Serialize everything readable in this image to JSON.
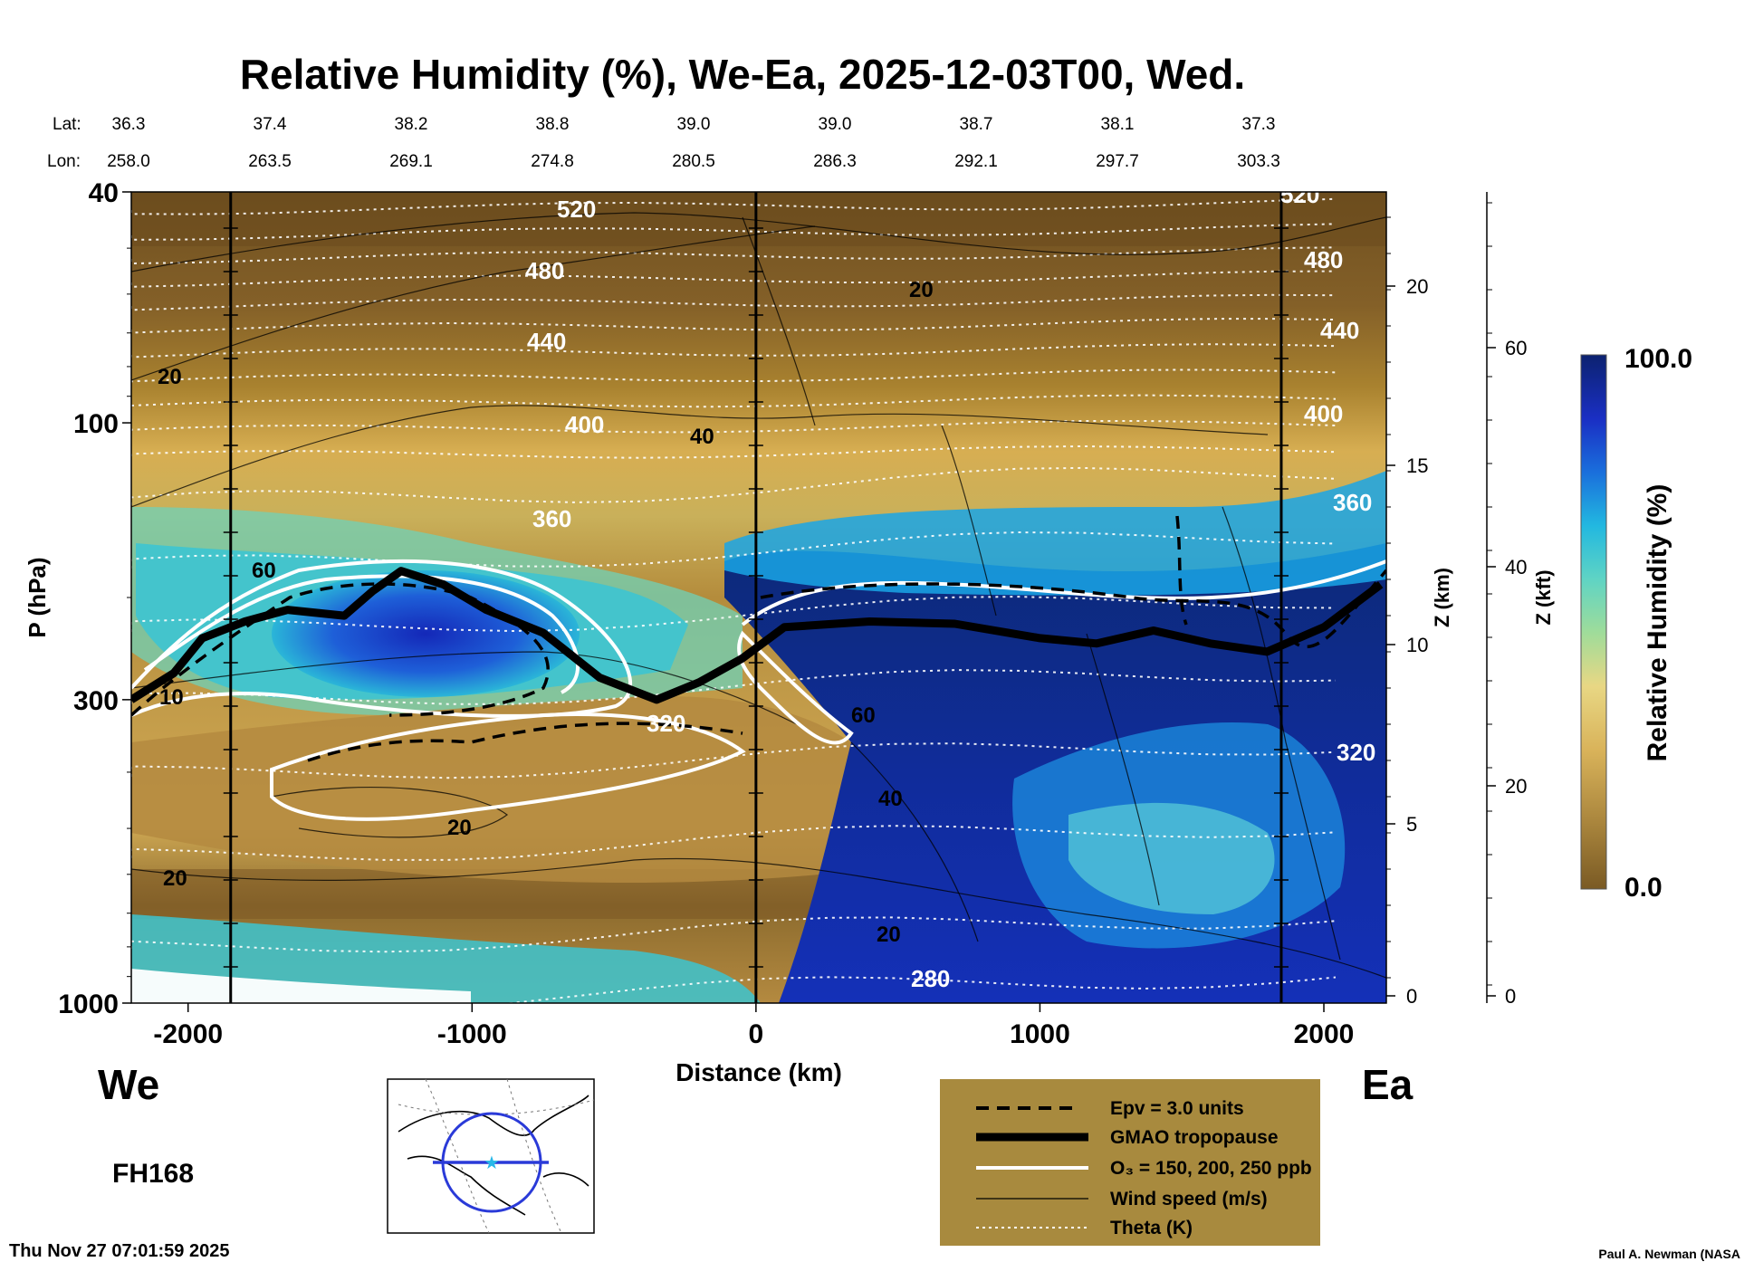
{
  "chart_data": {
    "type": "heatmap",
    "title": "Relative Humidity (%), We-Ea, 2025-12-03T00, Wed.",
    "xlabel": "Distance (km)",
    "ylabel": "P (hPa)",
    "xlim": [
      -2200,
      2220
    ],
    "ylim": [
      1000,
      40
    ],
    "x_ticks": [
      "-2000",
      "-1000",
      "0",
      "1000",
      "2000"
    ],
    "x_tick_values": [
      -2000,
      -1000,
      0,
      1000,
      2000
    ],
    "y_ticks": [
      "40",
      "100",
      "300",
      "1000"
    ],
    "y_tick_values": [
      40,
      100,
      300,
      1000
    ],
    "z_km_label": "Z (km)",
    "z_km_ticks": [
      "0",
      "5",
      "10",
      "15",
      "20"
    ],
    "z_kft_label": "Z (kft)",
    "z_kft_ticks": [
      "0",
      "20",
      "40",
      "60"
    ],
    "lat_label": "Lat:",
    "lon_label": "Lon:",
    "lat_values": [
      "36.3",
      "37.4",
      "38.2",
      "38.8",
      "39.0",
      "39.0",
      "38.7",
      "38.1",
      "37.3"
    ],
    "lon_values": [
      "258.0",
      "263.5",
      "269.1",
      "274.8",
      "280.5",
      "286.3",
      "292.1",
      "297.7",
      "303.3"
    ],
    "west_label": "We",
    "east_label": "Ea",
    "vertical_marker_distances": [
      -1850,
      0,
      1850
    ],
    "theta_labels": [
      "520",
      "480",
      "440",
      "400",
      "360",
      "320",
      "280",
      "520",
      "480",
      "440",
      "400",
      "360",
      "320"
    ],
    "wind_labels": [
      "20",
      "20",
      "40",
      "60",
      "20",
      "60",
      "40",
      "20",
      "20",
      "10"
    ],
    "colorbar": {
      "label": "Relative Humidity (%)",
      "max_label": "100.0",
      "min_label": "0.0",
      "max": 100,
      "min": 0
    },
    "tropopause_pressure_hpa": [
      [
        -2200,
        300
      ],
      [
        -2050,
        270
      ],
      [
        -1950,
        235
      ],
      [
        -1800,
        220
      ],
      [
        -1650,
        210
      ],
      [
        -1450,
        215
      ],
      [
        -1350,
        195
      ],
      [
        -1250,
        180
      ],
      [
        -1100,
        190
      ],
      [
        -950,
        210
      ],
      [
        -750,
        230
      ],
      [
        -550,
        275
      ],
      [
        -350,
        300
      ],
      [
        -200,
        280
      ],
      [
        -50,
        255
      ],
      [
        100,
        225
      ],
      [
        400,
        220
      ],
      [
        700,
        222
      ],
      [
        1000,
        235
      ],
      [
        1200,
        240
      ],
      [
        1400,
        228
      ],
      [
        1600,
        240
      ],
      [
        1800,
        248
      ],
      [
        2000,
        225
      ],
      [
        2200,
        190
      ]
    ],
    "legend": [
      {
        "style": "dashed",
        "label": "Epv = 3.0 units"
      },
      {
        "style": "thick-black",
        "label": "GMAO tropopause"
      },
      {
        "style": "white",
        "label": "O₃ = 150, 200, 250 ppb"
      },
      {
        "style": "thin-black",
        "label": "Wind speed (m/s)"
      },
      {
        "style": "dotted",
        "label": "Theta (K)"
      }
    ],
    "colors": {
      "dry": "#7d5a22",
      "moist": "#0b2b7a",
      "legend_bg": "#a88a3e"
    }
  },
  "forecast_hour": "FH168",
  "timestamp": "Thu Nov 27 07:01:59 2025",
  "credit": "Paul A. Newman (NASA"
}
